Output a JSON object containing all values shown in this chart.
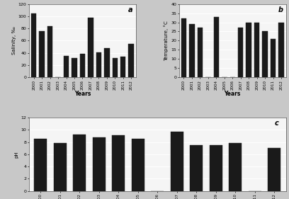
{
  "years": [
    "2000",
    "2001",
    "2002",
    "2003",
    "2004",
    "2005",
    "2006",
    "2007",
    "2008",
    "2009",
    "2010",
    "2011",
    "2012"
  ],
  "salinity": [
    105,
    76,
    84,
    0,
    35,
    31,
    38,
    97,
    41,
    48,
    31,
    34,
    55
  ],
  "temperature": [
    32,
    29,
    27,
    0,
    33,
    0,
    0,
    27,
    30,
    30,
    25,
    21,
    30
  ],
  "ph": [
    8.5,
    7.8,
    9.2,
    8.8,
    9.1,
    8.5,
    0,
    9.7,
    7.5,
    7.5,
    7.8,
    0,
    7.0
  ],
  "salinity_ylim": [
    0,
    120
  ],
  "salinity_yticks": [
    0,
    20,
    40,
    60,
    80,
    100,
    120
  ],
  "temp_ylim": [
    0,
    40
  ],
  "temp_yticks": [
    0,
    5,
    10,
    15,
    20,
    25,
    30,
    35,
    40
  ],
  "ph_ylim": [
    0,
    12
  ],
  "ph_yticks": [
    0,
    2,
    4,
    6,
    8,
    10,
    12
  ],
  "bar_color": "#1a1a1a",
  "label_a": "a",
  "label_b": "b",
  "label_c": "c",
  "ylabel_a": "Salinity, ‰",
  "ylabel_b": "Temperature, °C",
  "ylabel_c": "pH",
  "xlabel": "Years",
  "plot_bg": "#f5f5f5",
  "fig_bg": "#c8c8c8"
}
